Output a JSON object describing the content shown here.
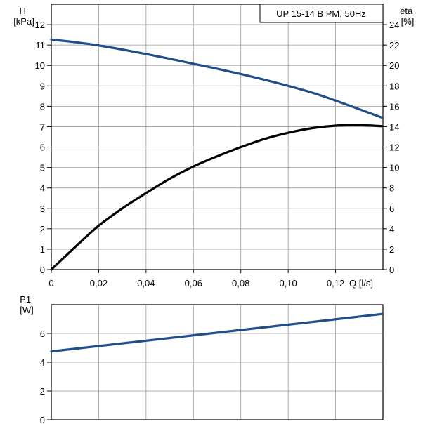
{
  "chart_data": [
    {
      "type": "line",
      "title": "UP 15-14 B PM, 50Hz",
      "xlabel": "Q [l/s]",
      "ylabel": "H\n[kPa]",
      "y2label": "eta\n[%]",
      "xlim": [
        0,
        0.14
      ],
      "ylim": [
        0,
        13
      ],
      "y2lim": [
        0,
        26
      ],
      "x_ticks": [
        0,
        0.02,
        0.04,
        0.06,
        0.08,
        0.1,
        0.12
      ],
      "x_tick_labels": [
        "0",
        "0,02",
        "0,04",
        "0,06",
        "0,08",
        "0,10",
        "0,12"
      ],
      "y_ticks": [
        0,
        1,
        2,
        3,
        4,
        5,
        6,
        7,
        8,
        9,
        10,
        11,
        12
      ],
      "y_tick_labels": [
        "0",
        "1",
        "2",
        "3",
        "4",
        "5",
        "6",
        "7",
        "8",
        "9",
        "10",
        "11",
        "12"
      ],
      "y2_ticks": [
        0,
        2,
        4,
        6,
        8,
        10,
        12,
        14,
        16,
        18,
        20,
        22,
        24
      ],
      "y2_tick_labels": [
        "0",
        "2",
        "4",
        "6",
        "8",
        "10",
        "12",
        "14",
        "16",
        "18",
        "20",
        "22",
        "24"
      ],
      "grid": true,
      "series": [
        {
          "axis": "left",
          "color": "#1f4e89",
          "x": [
            0,
            0.01,
            0.02,
            0.03,
            0.04,
            0.05,
            0.06,
            0.07,
            0.08,
            0.09,
            0.1,
            0.11,
            0.12,
            0.1395
          ],
          "values": [
            11.27,
            11.14,
            10.98,
            10.78,
            10.56,
            10.33,
            10.08,
            9.84,
            9.58,
            9.3,
            9.0,
            8.67,
            8.28,
            7.45
          ]
        },
        {
          "axis": "right",
          "color": "#000000",
          "x": [
            0,
            0.01,
            0.02,
            0.03,
            0.04,
            0.05,
            0.06,
            0.07,
            0.08,
            0.09,
            0.1,
            0.11,
            0.12,
            0.13,
            0.1395
          ],
          "values": [
            0,
            2.2,
            4.3,
            6.0,
            7.5,
            8.9,
            10.1,
            11.1,
            12.0,
            12.8,
            13.4,
            13.85,
            14.1,
            14.15,
            14.05
          ]
        }
      ]
    },
    {
      "type": "line",
      "ylabel": "P1\n[W]",
      "xlim": [
        0,
        0.14
      ],
      "ylim": [
        0,
        8
      ],
      "y_ticks": [
        0,
        2,
        4,
        6
      ],
      "y_tick_labels": [
        "0",
        "2",
        "4",
        "6"
      ],
      "grid": true,
      "series": [
        {
          "color": "#1f4e89",
          "x": [
            0,
            0.1395
          ],
          "values": [
            4.75,
            7.35
          ]
        }
      ]
    }
  ]
}
